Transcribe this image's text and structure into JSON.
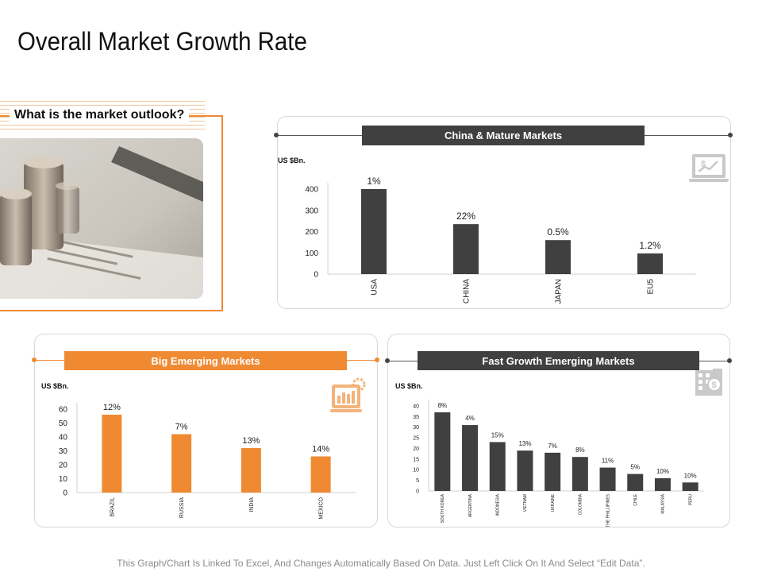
{
  "page": {
    "title": "Overall Market Growth Rate"
  },
  "outlook": {
    "heading": "What is the market outlook?"
  },
  "colors": {
    "dark": "#404040",
    "orange": "#ef8a32"
  },
  "icons": [
    "chart-monitor-icon",
    "gear-chart-icon",
    "building-dollar-icon"
  ],
  "footnote": "This Graph/Chart Is Linked To Excel, And Changes Automatically Based On Data. Just Left Click On It And Select “Edit Data”.",
  "chart_data": [
    {
      "type": "bar",
      "title": "China & Mature Markets",
      "ylabel": "US $Bn.",
      "categories": [
        "USA",
        "CHINA",
        "JAPAN",
        "EU5"
      ],
      "values": [
        400,
        235,
        160,
        97
      ],
      "data_labels": [
        "1%",
        "22%",
        "0.5%",
        "1.2%"
      ],
      "yticks": [
        0,
        100,
        200,
        300,
        400
      ],
      "ylim": [
        0,
        400
      ],
      "color": "#404040"
    },
    {
      "type": "bar",
      "title": "Big Emerging Markets",
      "ylabel": "US $Bn.",
      "categories": [
        "BRAZIL",
        "RUSSIA",
        "INDIA",
        "MEXICO"
      ],
      "values": [
        56,
        42,
        32,
        26
      ],
      "data_labels": [
        "12%",
        "7%",
        "13%",
        "14%"
      ],
      "yticks": [
        0,
        10,
        20,
        30,
        40,
        50,
        60
      ],
      "ylim": [
        0,
        60
      ],
      "color": "#ef8a32"
    },
    {
      "type": "bar",
      "title": "Fast Growth Emerging Markets",
      "ylabel": "US $Bn.",
      "categories": [
        "SOUTH KOREA",
        "ARGENTINA",
        "INDONESIA",
        "VIETNAM",
        "UKRAINE",
        "COLOMBIA",
        "THE PHILLIPINES",
        "CHILE",
        "MALAYSIA",
        "PERU"
      ],
      "values": [
        37,
        31,
        23,
        19,
        18,
        16,
        11,
        8,
        6,
        4
      ],
      "data_labels": [
        "8%",
        "4%",
        "15%",
        "13%",
        "7%",
        "8%",
        "11%",
        "5%",
        "10%",
        "10%"
      ],
      "yticks": [
        0,
        5,
        10,
        15,
        20,
        25,
        30,
        35,
        40
      ],
      "ylim": [
        0,
        40
      ],
      "color": "#404040"
    }
  ]
}
